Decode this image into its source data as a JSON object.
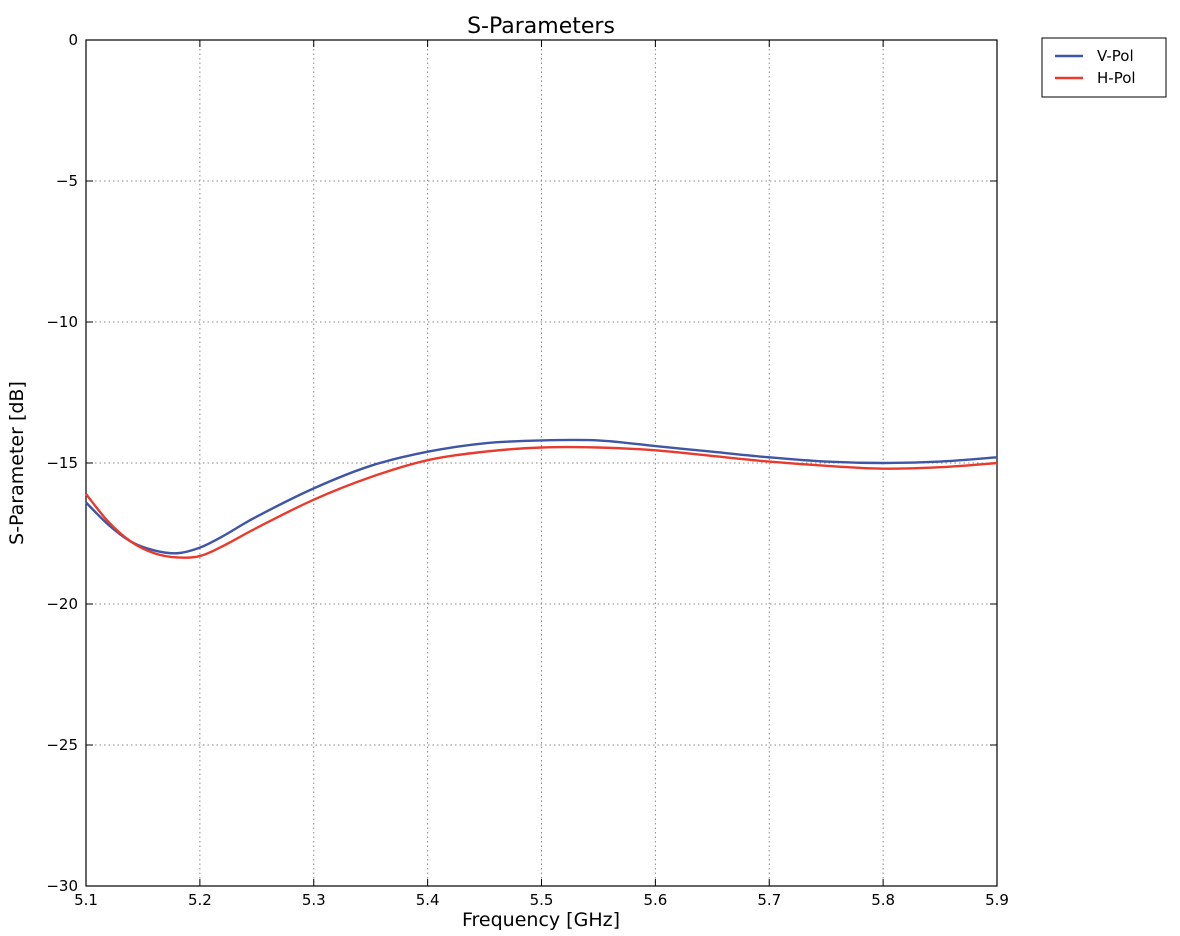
{
  "chart_data": {
    "type": "line",
    "title": "S-Parameters",
    "xlabel": "Frequency [GHz]",
    "ylabel": "S-Parameter [dB]",
    "xlim": [
      5.1,
      5.9
    ],
    "ylim": [
      -30,
      0
    ],
    "xticks": [
      "5.1",
      "5.2",
      "5.3",
      "5.4",
      "5.5",
      "5.6",
      "5.7",
      "5.8",
      "5.9"
    ],
    "yticks": [
      "0",
      "−5",
      "−10",
      "−15",
      "−20",
      "−25",
      "−30"
    ],
    "grid": true,
    "legend_position": "outside-top-right",
    "x": [
      5.1,
      5.12,
      5.14,
      5.16,
      5.18,
      5.2,
      5.22,
      5.25,
      5.3,
      5.35,
      5.4,
      5.45,
      5.5,
      5.55,
      5.6,
      5.65,
      5.7,
      5.75,
      5.8,
      5.85,
      5.9
    ],
    "series": [
      {
        "name": "V-Pol",
        "color": "#3f55a6",
        "values": [
          -16.4,
          -17.2,
          -17.8,
          -18.1,
          -18.2,
          -18.0,
          -17.6,
          -16.9,
          -15.9,
          -15.1,
          -14.6,
          -14.3,
          -14.2,
          -14.2,
          -14.4,
          -14.6,
          -14.8,
          -14.95,
          -15.0,
          -14.95,
          -14.8
        ]
      },
      {
        "name": "H-Pol",
        "color": "#e83b2e",
        "values": [
          -16.1,
          -17.1,
          -17.8,
          -18.2,
          -18.35,
          -18.3,
          -17.95,
          -17.3,
          -16.3,
          -15.5,
          -14.9,
          -14.6,
          -14.45,
          -14.45,
          -14.55,
          -14.75,
          -14.95,
          -15.1,
          -15.2,
          -15.15,
          -15.0
        ]
      }
    ]
  }
}
